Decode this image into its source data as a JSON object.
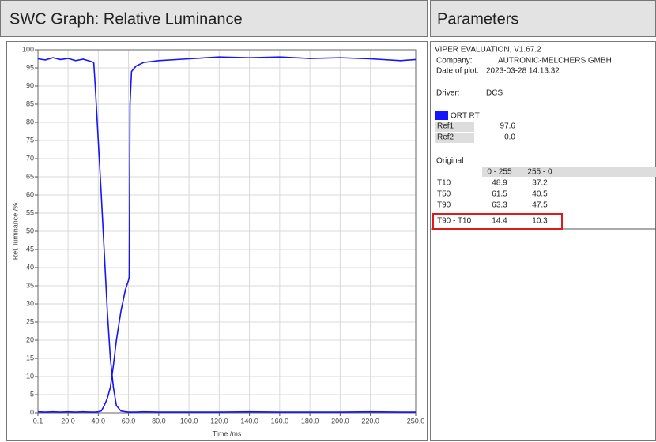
{
  "graph_panel": {
    "title": "SWC Graph: Relative Luminance",
    "chart": {
      "type": "line",
      "xlabel": "Time /ms",
      "ylabel": "Rel. luminance /%",
      "x": [
        0.1,
        5,
        10,
        15,
        20,
        25,
        30,
        35,
        37,
        38,
        40,
        42,
        44,
        46,
        48,
        50,
        52,
        55,
        58,
        60,
        60.5,
        61,
        62,
        65,
        70,
        80,
        100,
        120,
        140,
        160,
        180,
        200,
        220,
        240,
        250
      ],
      "series": [
        {
          "color": "#1414ff",
          "values": [
            97.5,
            97.2,
            97.8,
            97.3,
            97.6,
            97,
            97.4,
            96.8,
            96.5,
            90,
            75,
            60,
            44,
            28,
            15,
            7,
            2,
            0.5,
            0.3,
            0.2,
            0.2,
            0.2,
            0.2,
            0.2,
            0.3,
            0.2,
            0.2,
            0.2,
            0.3,
            0.2,
            0.2,
            0.2,
            0.3,
            0.2,
            0.2
          ]
        },
        {
          "color": "#1414ff",
          "values": [
            0.3,
            0.2,
            0.3,
            0.2,
            0.3,
            0.2,
            0.3,
            0.2,
            0.2,
            0.2,
            0.3,
            0.5,
            2,
            4,
            7,
            13,
            20,
            28,
            34,
            36.5,
            37.5,
            85,
            94,
            95.5,
            96.5,
            97,
            97.5,
            98,
            97.8,
            98,
            97.6,
            97.8,
            97.5,
            97,
            97.3
          ]
        }
      ],
      "xlim": [
        0.1,
        250
      ],
      "xticks": [
        0.1,
        {
          "value": 20,
          "label": "20.0"
        },
        {
          "value": 40,
          "label": "40.0"
        },
        {
          "value": 60,
          "label": "60.0"
        },
        {
          "value": 80,
          "label": "80.0"
        },
        {
          "value": 100,
          "label": "100.0"
        },
        {
          "value": 120,
          "label": "120.0"
        },
        {
          "value": 140,
          "label": "140.0"
        },
        {
          "value": 160,
          "label": "160.0"
        },
        {
          "value": 180,
          "label": "180.0"
        },
        {
          "value": 200,
          "label": "200.0"
        },
        {
          "value": 220,
          "label": "220.0"
        },
        {
          "value": 250,
          "label": "250.0"
        }
      ],
      "ylim": [
        0,
        100
      ],
      "yticks": [
        0,
        5,
        10,
        15,
        20,
        25,
        30,
        35,
        40,
        45,
        50,
        55,
        60,
        65,
        70,
        75,
        80,
        85,
        90,
        95,
        100
      ],
      "grid": true
    }
  },
  "parameters": {
    "title": "Parameters",
    "software": "VIPER EVALUATION, V1.67.2",
    "fields": [
      {
        "label": "Company:",
        "value": "AUTRONIC-MELCHERS GMBH"
      },
      {
        "label": "Date of plot:",
        "value": "2023-03-28 14:13:32"
      },
      {
        "label": "Driver:",
        "value": "DCS"
      }
    ],
    "legend": "ORT RT",
    "refs": [
      {
        "label": "Ref1",
        "value": "97.6"
      },
      {
        "label": "Ref2",
        "value": "-0.0"
      }
    ],
    "original": "Original",
    "table": {
      "header": [
        "0 - 255",
        "255 - 0"
      ],
      "rows": [
        [
          "T10",
          "48.9",
          "37.2"
        ],
        [
          "T50",
          "61.5",
          "40.5"
        ],
        [
          "T90",
          "63.3",
          "47.5"
        ],
        [
          "T90 - T10",
          "14.4",
          "10.3"
        ]
      ]
    }
  }
}
